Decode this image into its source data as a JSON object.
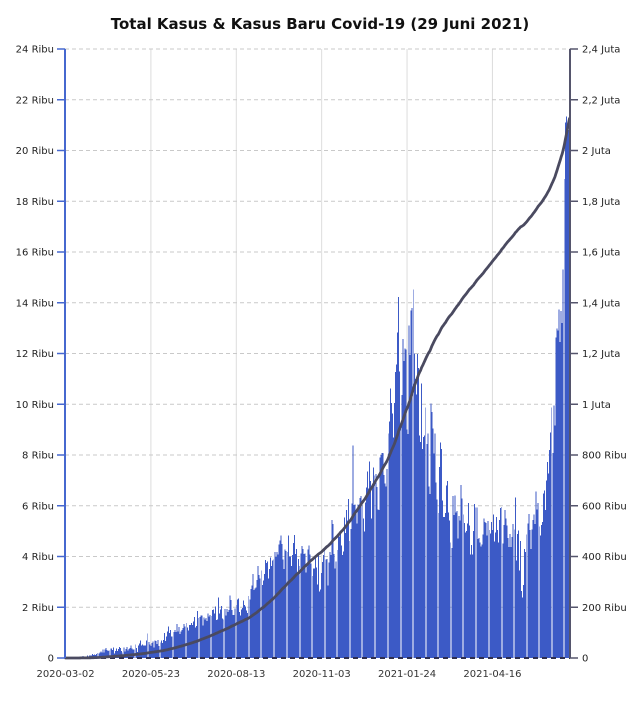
{
  "title": "Total Kasus & Kasus Baru Covid-19 (29 Juni 2021)",
  "chart_data": {
    "type": "bar+line combo (dual axis)",
    "title": "Total Kasus & Kasus Baru Covid-19 (29 Juni 2021)",
    "legend": "none",
    "grid": {
      "horizontal": "dashed",
      "vertical": "solid at labeled date ticks"
    },
    "x_axis": {
      "start_date": "2020-03-02",
      "end_date": "2021-06-29",
      "cadence": "daily",
      "tick_labels": [
        "2020-03-02",
        "2020-05-23",
        "2020-08-13",
        "2020-11-03",
        "2021-01-24",
        "2021-04-16"
      ],
      "tick_day_indices": [
        0,
        82,
        164,
        246,
        328,
        410
      ]
    },
    "left_axis": {
      "min": 0,
      "max": 24000,
      "step": 2000,
      "unit": "Ribu",
      "labels": [
        "0",
        "2 Ribu",
        "4 Ribu",
        "6 Ribu",
        "8 Ribu",
        "10 Ribu",
        "12 Ribu",
        "14 Ribu",
        "16 Ribu",
        "18 Ribu",
        "20 Ribu",
        "22 Ribu",
        "24 Ribu"
      ],
      "series": "Kasus Baru (bars)"
    },
    "right_axis": {
      "min": 0,
      "max": 2400000,
      "step": 200000,
      "unit": "Ribu/Juta",
      "labels": [
        "0",
        "200 Ribu",
        "400 Ribu",
        "600 Ribu",
        "800 Ribu",
        "1 Juta",
        "1,2 Juta",
        "1,4 Juta",
        "1,6 Juta",
        "1,8 Juta",
        "2 Juta",
        "2,2 Juta",
        "2,4 Juta"
      ],
      "series": "Total Kasus (line)"
    },
    "series_bars": {
      "name": "Kasus Baru",
      "type": "bar",
      "axis": "left",
      "color": "#3c5ac6",
      "values": [
        2,
        0,
        0,
        2,
        8,
        4,
        3,
        6,
        2,
        8,
        25,
        34,
        21,
        17,
        55,
        38,
        55,
        82,
        61,
        64,
        65,
        106,
        65,
        107,
        103,
        99,
        153,
        109,
        130,
        114,
        149,
        196,
        181,
        218,
        247,
        218,
        337,
        219,
        330,
        399,
        316,
        282,
        297,
        380,
        380,
        325,
        407,
        185,
        283,
        375,
        283,
        357,
        436,
        396,
        275,
        214,
        415,
        260,
        347,
        433,
        292,
        349,
        395,
        484,
        367,
        338,
        336,
        533,
        387,
        233,
        484,
        568,
        689,
        490,
        529,
        496,
        489,
        486,
        693,
        973,
        634,
        526,
        479,
        601,
        657,
        415,
        687,
        678,
        557,
        700,
        467,
        609,
        684,
        585,
        703,
        993,
        672,
        847,
        1043,
        1241,
        979,
        1111,
        857,
        856,
        1017,
        1106,
        1031,
        1331,
        1041,
        1226,
        954,
        1051,
        1113,
        1178,
        1331,
        1240,
        1385,
        1198,
        1082,
        1293,
        1301,
        1385,
        1293,
        1447,
        1607,
        1209,
        1268,
        1853,
        1575,
        1611,
        1671,
        1681,
        1282,
        1591,
        1522,
        1574,
        1462,
        1752,
        1639,
        1693,
        1655,
        1882,
        1906,
        1761,
        2033,
        1492,
        1525,
        2381,
        1748,
        1904,
        2040,
        1560,
        1519,
        1922,
        1679,
        1922,
        1815,
        1882,
        2473,
        2277,
        1893,
        1687,
        1693,
        1942,
        2098,
        2307,
        2345,
        1821,
        1673,
        1902,
        1962,
        2266,
        2090,
        2037,
        1877,
        1776,
        2447,
        2306,
        2719,
        2858,
        3308,
        2684,
        2743,
        2775,
        3075,
        3622,
        3269,
        3128,
        3444,
        2880,
        3046,
        3307,
        3861,
        3737,
        3806,
        3141,
        3507,
        3963,
        3635,
        3835,
        3891,
        4168,
        3989,
        4176,
        4071,
        4465,
        4634,
        4823,
        4494,
        3874,
        3509,
        4284,
        4224,
        4174,
        4824,
        4007,
        3992,
        3622,
        4056,
        4538,
        4850,
        4094,
        4294,
        3267,
        3906,
        3622,
        4127,
        4411,
        4301,
        4105,
        4120,
        3373,
        3602,
        4267,
        4432,
        4070,
        3732,
        3222,
        3520,
        3520,
        4029,
        3565,
        2897,
        4120,
        2618,
        2696,
        3356,
        3779,
        4065,
        4262,
        3880,
        3907,
        2853,
        3770,
        4173,
        4060,
        5444,
        5272,
        4106,
        3535,
        3807,
        4265,
        4792,
        4798,
        4998,
        4442,
        4054,
        4192,
        5534,
        4917,
        5828,
        5418,
        6267,
        4617,
        5092,
        6089,
        8369,
        6027,
        6058,
        5754,
        5292,
        6058,
        6033,
        6310,
        6388,
        6189,
        5489,
        4978,
        6120,
        6725,
        7354,
        6689,
        7751,
        6982,
        5489,
        6848,
        7514,
        7199,
        7259,
        6740,
        5854,
        5828,
        7903,
        8002,
        8074,
        8072,
        7203,
        6877,
        6753,
        7445,
        8854,
        9321,
        10617,
        10046,
        9640,
        8692,
        10047,
        11278,
        11557,
        12818,
        14224,
        11287,
        9086,
        10365,
        12568,
        11703,
        12191,
        12156,
        9011,
        8824,
        13094,
        11948,
        13695,
        13802,
        14518,
        12001,
        10994,
        10379,
        11984,
        11434,
        8776,
        8520,
        10827,
        8242,
        8700,
        8776,
        9869,
        8435,
        8844,
        6765,
        6462,
        10029,
        9687,
        9039,
        8054,
        8844,
        6926,
        6243,
        5712,
        7533,
        8493,
        8232,
        6208,
        5560,
        5560,
        5712,
        6808,
        6971,
        5728,
        5414,
        4549,
        4337,
        6389,
        5633,
        6412,
        5734,
        5790,
        4714,
        5589,
        5414,
        6825,
        6279,
        5656,
        5321,
        4952,
        5008,
        5297,
        6107,
        5227,
        4083,
        4461,
        4083,
        5008,
        6060,
        5937,
        5937,
        4682,
        4723,
        4549,
        4402,
        4478,
        4860,
        5504,
        5363,
        5325,
        4829,
        5402,
        5041,
        4912,
        5363,
        5041,
        5656,
        4585,
        4952,
        5549,
        5041,
        4544,
        5436,
        5903,
        5944,
        4510,
        5241,
        5833,
        5500,
        5226,
        4730,
        4369,
        4891,
        4369,
        4775,
        5285,
        5060,
        6327,
        3844,
        4891,
        5021,
        3448,
        4608,
        2633,
        2385,
        2879,
        4295,
        4185,
        4871,
        5296,
        5670,
        5045,
        4295,
        5060,
        5434,
        5657,
        5285,
        6565,
        5862,
        6115,
        5189,
        4824,
        5246,
        5353,
        6486,
        6594,
        5832,
        6993,
        7725,
        7264,
        8189,
        8892,
        9868,
        8083,
        9944,
        9161,
        12624,
        12990,
        12906,
        13737,
        12454,
        13668,
        13210,
        15308,
        18872,
        21095,
        21342,
        20694,
        20813,
        20467
      ]
    },
    "series_line": {
      "name": "Total Kasus",
      "type": "line",
      "axis": "right",
      "color": "#4a4a60",
      "derivation": "cumulative sum of Kasus Baru daily values",
      "approx_end_value": 2123000
    }
  },
  "colors": {
    "bars": "#3c5ac6",
    "line": "#4a4a60",
    "left_axis": "#4668cf",
    "right_axis": "#55556c",
    "grid_dashed": "#c9c9c9",
    "grid_vertical": "#dcdcdc",
    "zero_axis_dashed": "#2f2f4f",
    "tick_label": "#1f1f1f",
    "x_label": "#333333",
    "title": "#111111",
    "background": "#ffffff"
  }
}
